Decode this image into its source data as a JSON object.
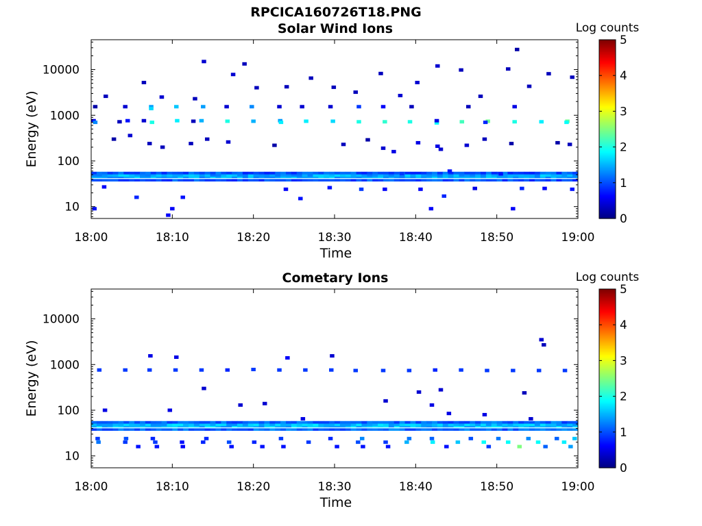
{
  "figure": {
    "filename_title": "RPCICA160726T18.PNG"
  },
  "colormap": {
    "name": "jet",
    "stops": [
      "#00007f",
      "#0000ff",
      "#007fff",
      "#00ffff",
      "#7fff7f",
      "#ffff00",
      "#ff7f00",
      "#ff0000",
      "#7f0000"
    ]
  },
  "chart_data": [
    {
      "type": "heatmap",
      "title": "Solar Wind Ions",
      "xlabel": "Time",
      "ylabel": "Energy (eV)",
      "x_ticks": [
        "18:00",
        "18:10",
        "18:20",
        "18:30",
        "18:40",
        "18:50",
        "19:00"
      ],
      "x_range_minutes": [
        0,
        60
      ],
      "y_scale": "log",
      "y_ticks": [
        10,
        100,
        1000,
        10000
      ],
      "y_tick_labels": [
        "10",
        "100",
        "1000",
        "10000"
      ],
      "y_range": [
        5.5,
        45000
      ],
      "colorbar": {
        "label": "Log counts",
        "range": [
          0,
          5
        ],
        "ticks": [
          "0",
          "1",
          "2",
          "3",
          "4",
          "5"
        ]
      },
      "dominant_band": {
        "energy_ev": [
          36,
          58
        ],
        "log_counts": [
          0.9,
          1.7
        ]
      },
      "cells": [
        [
          0.5,
          1540,
          0.2
        ],
        [
          0.3,
          760,
          0.6
        ],
        [
          0.5,
          700,
          1.3
        ],
        [
          4.2,
          1540,
          0.4
        ],
        [
          3.5,
          720,
          0.3
        ],
        [
          4.5,
          760,
          0.7
        ],
        [
          7.4,
          1540,
          1.4
        ],
        [
          7.4,
          1400,
          1.7
        ],
        [
          6.5,
          760,
          0.4
        ],
        [
          7.5,
          700,
          2.0
        ],
        [
          10.5,
          1540,
          1.6
        ],
        [
          10.6,
          760,
          1.8
        ],
        [
          13.8,
          1540,
          1.4
        ],
        [
          13.6,
          760,
          1.5
        ],
        [
          12.6,
          740,
          0.3
        ],
        [
          16.7,
          1540,
          0.4
        ],
        [
          16.8,
          740,
          2.0
        ],
        [
          19.8,
          1540,
          1.3
        ],
        [
          20.0,
          740,
          1.5
        ],
        [
          23.2,
          1540,
          0.4
        ],
        [
          23.3,
          760,
          1.4
        ],
        [
          23.4,
          700,
          1.8
        ],
        [
          26.0,
          1540,
          0.4
        ],
        [
          26.5,
          740,
          1.8
        ],
        [
          29.5,
          1540,
          0.4
        ],
        [
          29.8,
          740,
          1.7
        ],
        [
          33.0,
          1540,
          0.9
        ],
        [
          33.0,
          720,
          2.0
        ],
        [
          36.2,
          720,
          2.1
        ],
        [
          36.0,
          1540,
          0.6
        ],
        [
          39.3,
          720,
          2.0
        ],
        [
          39.5,
          1540,
          0.3
        ],
        [
          42.6,
          680,
          1.9
        ],
        [
          42.6,
          760,
          0.5
        ],
        [
          45.7,
          720,
          2.2
        ],
        [
          46.5,
          1540,
          0.3
        ],
        [
          48.9,
          740,
          2.4
        ],
        [
          48.6,
          700,
          0.8
        ],
        [
          52.2,
          720,
          2.0
        ],
        [
          52.2,
          1540,
          0.5
        ],
        [
          55.5,
          720,
          1.8
        ],
        [
          58.7,
          740,
          2.4
        ],
        [
          58.6,
          700,
          1.9
        ],
        [
          1.8,
          2600,
          0.3
        ],
        [
          6.5,
          5200,
          0.3
        ],
        [
          8.7,
          2500,
          0.4
        ],
        [
          13.9,
          15000,
          0.4
        ],
        [
          12.8,
          2300,
          0.3
        ],
        [
          18.9,
          13300,
          0.3
        ],
        [
          17.5,
          7800,
          0.4
        ],
        [
          20.4,
          4000,
          0.3
        ],
        [
          24.1,
          4200,
          0.3
        ],
        [
          27.1,
          6500,
          0.3
        ],
        [
          29.9,
          4100,
          0.3
        ],
        [
          32.6,
          3200,
          0.3
        ],
        [
          35.7,
          8200,
          0.3
        ],
        [
          38.1,
          2700,
          0.4
        ],
        [
          40.2,
          5200,
          0.4
        ],
        [
          42.7,
          12000,
          0.4
        ],
        [
          45.6,
          9800,
          0.3
        ],
        [
          48.0,
          2600,
          0.3
        ],
        [
          51.4,
          10300,
          0.3
        ],
        [
          52.5,
          27500,
          0.2
        ],
        [
          54.0,
          4300,
          0.3
        ],
        [
          56.4,
          8100,
          0.3
        ],
        [
          59.3,
          6800,
          0.3
        ],
        [
          4.8,
          360,
          0.4
        ],
        [
          2.8,
          300,
          0.2
        ],
        [
          7.2,
          240,
          0.3
        ],
        [
          8.8,
          200,
          0.3
        ],
        [
          12.3,
          240,
          0.3
        ],
        [
          14.3,
          300,
          0.3
        ],
        [
          16.9,
          260,
          0.4
        ],
        [
          22.6,
          220,
          0.2
        ],
        [
          31.1,
          230,
          0.3
        ],
        [
          34.1,
          290,
          0.2
        ],
        [
          36.0,
          190,
          0.4
        ],
        [
          37.3,
          160,
          0.5
        ],
        [
          40.3,
          250,
          0.5
        ],
        [
          42.7,
          210,
          0.5
        ],
        [
          43.1,
          180,
          0.4
        ],
        [
          46.3,
          220,
          0.4
        ],
        [
          48.5,
          300,
          0.3
        ],
        [
          51.8,
          240,
          0.2
        ],
        [
          57.5,
          250,
          0.2
        ],
        [
          59.0,
          230,
          0.3
        ],
        [
          0.4,
          9.0,
          0.7
        ],
        [
          1.6,
          27,
          0.6
        ],
        [
          5.6,
          16,
          0.8
        ],
        [
          10.0,
          9.0,
          0.6
        ],
        [
          11.3,
          16,
          0.7
        ],
        [
          24.0,
          24,
          0.6
        ],
        [
          25.8,
          15,
          0.7
        ],
        [
          29.4,
          26,
          0.7
        ],
        [
          33.3,
          24,
          0.9
        ],
        [
          36.2,
          24,
          0.6
        ],
        [
          40.6,
          24,
          0.6
        ],
        [
          41.9,
          9.0,
          0.6
        ],
        [
          43.5,
          17,
          0.8
        ],
        [
          47.3,
          25,
          0.5
        ],
        [
          52.0,
          9.0,
          0.6
        ],
        [
          53.1,
          25,
          0.8
        ],
        [
          55.9,
          25,
          0.6
        ],
        [
          59.3,
          24,
          0.7
        ],
        [
          9.5,
          6.5,
          0.6
        ],
        [
          38.3,
          53,
          0.9
        ],
        [
          44.2,
          60,
          0.7
        ],
        [
          50.5,
          52,
          0.7
        ]
      ]
    },
    {
      "type": "heatmap",
      "title": "Cometary Ions",
      "xlabel": "Time",
      "ylabel": "Energy (eV)",
      "x_ticks": [
        "18:00",
        "18:10",
        "18:20",
        "18:30",
        "18:40",
        "18:50",
        "19:00"
      ],
      "x_range_minutes": [
        0,
        60
      ],
      "y_scale": "log",
      "y_ticks": [
        10,
        100,
        1000,
        10000
      ],
      "y_tick_labels": [
        "10",
        "100",
        "1000",
        "10000"
      ],
      "y_range": [
        5.5,
        45000
      ],
      "colorbar": {
        "label": "Log counts",
        "range": [
          0,
          5
        ],
        "ticks": [
          "0",
          "1",
          "2",
          "3",
          "4",
          "5"
        ]
      },
      "dominant_band": {
        "energy_ev": [
          36,
          58
        ],
        "log_counts": [
          1.0,
          1.8
        ]
      },
      "cells": [
        [
          1.0,
          760,
          0.9
        ],
        [
          4.2,
          760,
          0.9
        ],
        [
          7.2,
          760,
          0.9
        ],
        [
          10.4,
          760,
          0.9
        ],
        [
          13.6,
          760,
          0.9
        ],
        [
          16.8,
          760,
          0.8
        ],
        [
          20.0,
          780,
          0.9
        ],
        [
          23.2,
          760,
          0.9
        ],
        [
          26.4,
          760,
          0.9
        ],
        [
          29.6,
          760,
          0.9
        ],
        [
          32.6,
          740,
          0.9
        ],
        [
          36.0,
          740,
          0.9
        ],
        [
          39.2,
          740,
          0.9
        ],
        [
          42.4,
          760,
          0.8
        ],
        [
          45.6,
          760,
          0.9
        ],
        [
          48.8,
          740,
          0.9
        ],
        [
          52.0,
          740,
          0.9
        ],
        [
          55.2,
          740,
          0.9
        ],
        [
          58.4,
          740,
          0.9
        ],
        [
          7.3,
          1550,
          0.5
        ],
        [
          10.5,
          1450,
          0.5
        ],
        [
          24.2,
          1400,
          0.6
        ],
        [
          29.7,
          1550,
          0.4
        ],
        [
          55.5,
          3500,
          0.4
        ],
        [
          55.8,
          2700,
          0.3
        ],
        [
          1.7,
          100,
          0.5
        ],
        [
          9.7,
          100,
          0.5
        ],
        [
          13.9,
          300,
          0.4
        ],
        [
          18.4,
          130,
          0.4
        ],
        [
          21.4,
          140,
          0.4
        ],
        [
          26.1,
          65,
          0.5
        ],
        [
          36.3,
          160,
          0.4
        ],
        [
          40.4,
          250,
          0.4
        ],
        [
          42.0,
          130,
          0.5
        ],
        [
          43.1,
          280,
          0.4
        ],
        [
          44.1,
          85,
          0.5
        ],
        [
          48.5,
          80,
          0.5
        ],
        [
          53.4,
          240,
          0.3
        ],
        [
          54.2,
          65,
          0.4
        ],
        [
          0.8,
          24,
          0.9
        ],
        [
          0.9,
          20,
          1.2
        ],
        [
          4.3,
          24,
          1.0
        ],
        [
          4.2,
          20,
          0.9
        ],
        [
          5.8,
          16,
          0.7
        ],
        [
          7.6,
          24,
          0.8
        ],
        [
          7.9,
          20,
          0.9
        ],
        [
          8.1,
          16,
          0.7
        ],
        [
          11.2,
          20,
          0.7
        ],
        [
          11.3,
          16,
          0.6
        ],
        [
          14.2,
          24,
          0.8
        ],
        [
          13.8,
          20,
          0.8
        ],
        [
          17.0,
          20,
          1.0
        ],
        [
          17.3,
          16,
          0.7
        ],
        [
          20.1,
          20,
          0.8
        ],
        [
          21.1,
          16,
          0.7
        ],
        [
          23.4,
          24,
          0.9
        ],
        [
          23.7,
          16,
          0.7
        ],
        [
          26.8,
          20,
          0.9
        ],
        [
          29.5,
          24,
          0.8
        ],
        [
          30.3,
          16,
          0.7
        ],
        [
          32.9,
          20,
          1.0
        ],
        [
          33.4,
          24,
          1.3
        ],
        [
          33.5,
          16,
          0.7
        ],
        [
          36.3,
          20,
          0.9
        ],
        [
          36.6,
          16,
          0.7
        ],
        [
          38.9,
          20,
          1.5
        ],
        [
          39.2,
          24,
          1.2
        ],
        [
          42.1,
          20,
          1.8
        ],
        [
          42.0,
          24,
          1.1
        ],
        [
          43.8,
          16,
          0.7
        ],
        [
          45.2,
          20,
          1.6
        ],
        [
          46.8,
          24,
          1.0
        ],
        [
          48.4,
          20,
          1.9
        ],
        [
          49.0,
          16,
          0.9
        ],
        [
          50.2,
          24,
          1.2
        ],
        [
          51.4,
          20,
          1.9
        ],
        [
          52.8,
          16,
          2.5
        ],
        [
          53.9,
          24,
          1.3
        ],
        [
          55.1,
          20,
          1.9
        ],
        [
          56.0,
          16,
          1.1
        ],
        [
          57.4,
          24,
          1.1
        ],
        [
          58.3,
          20,
          1.8
        ],
        [
          59.1,
          16,
          1.4
        ],
        [
          59.6,
          24,
          1.6
        ]
      ]
    }
  ]
}
